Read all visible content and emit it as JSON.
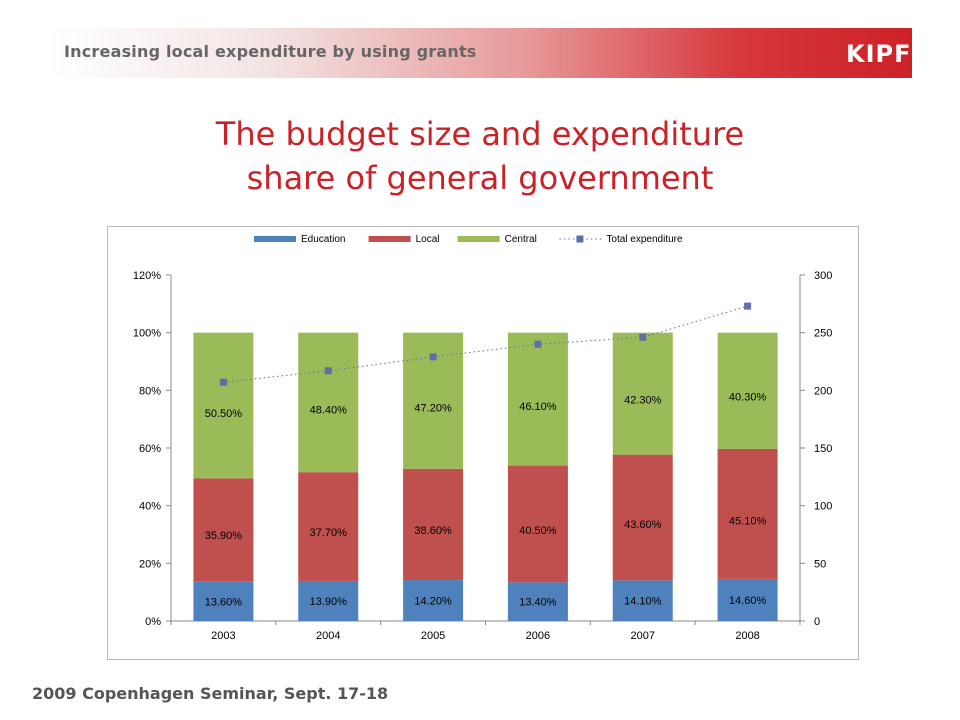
{
  "header": {
    "title": "Increasing local expenditure by using grants",
    "logo": "KIPF"
  },
  "slide": {
    "title_line1": "The budget size and expenditure",
    "title_line2": "share of general government"
  },
  "footer": {
    "text": "2009 Copenhagen Seminar, Sept. 17-18"
  },
  "colors": {
    "accent": "#cc2127",
    "education": "#4f81bd",
    "local": "#c0504d",
    "central": "#9bbb59",
    "total": "#5f6ea8"
  },
  "chart_data": {
    "type": "bar",
    "stacked": true,
    "categories": [
      "2003",
      "2004",
      "2005",
      "2006",
      "2007",
      "2008"
    ],
    "series": [
      {
        "name": "Education",
        "values": [
          13.6,
          13.9,
          14.2,
          13.4,
          14.1,
          14.6
        ],
        "labels": [
          "13.60%",
          "13.90%",
          "14.20%",
          "13.40%",
          "14.10%",
          "14.60%"
        ],
        "color": "#4f81bd"
      },
      {
        "name": "Local",
        "values": [
          35.9,
          37.7,
          38.6,
          40.5,
          43.6,
          45.1
        ],
        "labels": [
          "35.90%",
          "37.70%",
          "38.60%",
          "40.50%",
          "43.60%",
          "45.10%"
        ],
        "color": "#c0504d"
      },
      {
        "name": "Central",
        "values": [
          50.5,
          48.4,
          47.2,
          46.1,
          42.3,
          40.3
        ],
        "labels": [
          "50.50%",
          "48.40%",
          "47.20%",
          "46.10%",
          "42.30%",
          "40.30%"
        ],
        "color": "#9bbb59"
      }
    ],
    "line_series": {
      "name": "Total expenditure",
      "axis": "right",
      "values": [
        207,
        217,
        229,
        240,
        246,
        273
      ],
      "color": "#5f6ea8",
      "style": "dotted"
    },
    "left_axis": {
      "min": 0,
      "max": 120,
      "step": 20,
      "ticks": [
        "0%",
        "20%",
        "40%",
        "60%",
        "80%",
        "100%",
        "120%"
      ]
    },
    "right_axis": {
      "min": 0,
      "max": 300,
      "step": 50,
      "ticks": [
        "0",
        "50",
        "100",
        "150",
        "200",
        "250",
        "300"
      ]
    },
    "legend_position": "top",
    "grid": false
  }
}
